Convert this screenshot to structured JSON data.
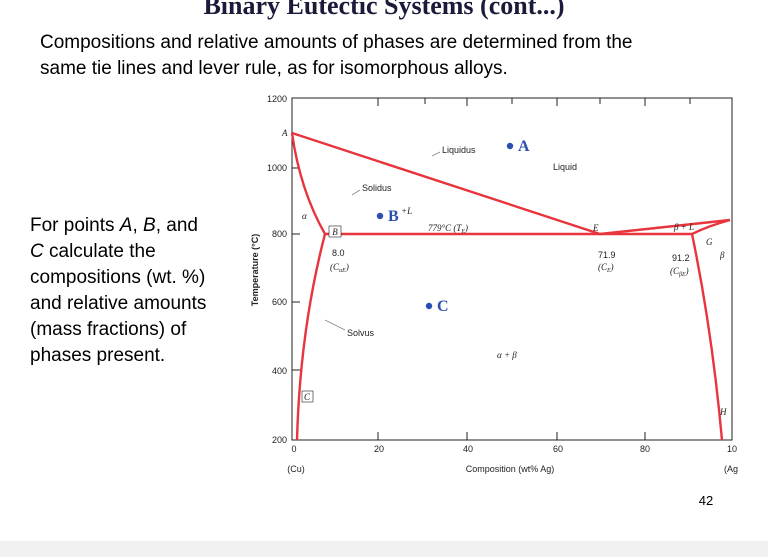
{
  "header": {
    "title": "Binary Eutectic Systems (cont...)"
  },
  "intro": [
    "Compositions and relative amounts of phases are determined from the",
    "same tie lines and lever rule, as for isomorphous alloys."
  ],
  "question": {
    "line1": [
      "For points ",
      "A",
      ", ",
      "B",
      ", and"
    ],
    "line2": [
      "C",
      " calculate the"
    ],
    "rest": [
      "compositions (wt. %)",
      "and relative amounts",
      "(mass fractions) of",
      "phases present."
    ]
  },
  "figure": {
    "y_axis_title": "Temperature (°C)",
    "x_axis_title": "Composition (wt% Ag)",
    "y_tick_labels": [
      "1200",
      "1000",
      "800",
      "600",
      "400",
      "200"
    ],
    "x_tick_labels": [
      "0",
      "20",
      "40",
      "60",
      "80",
      "10"
    ],
    "x_end_labels": [
      "(Cu)",
      "(Ag"
    ],
    "labels": {
      "a_melt": "A",
      "liquidus": "Liquidus",
      "liquid": "Liquid",
      "solidus": "Solidus",
      "alpha": "α",
      "b_box": "B",
      "eutectic_temp": [
        "779°C (T",
        "E",
        ")"
      ],
      "e": "E",
      "beta_l": "β + L",
      "g": "G",
      "beta": "β",
      "c_alpha_value": "8.0",
      "c_alpha": [
        "(C",
        "αE",
        ")"
      ],
      "c_e_value": "71.9",
      "c_e": [
        "(C",
        "E",
        ")"
      ],
      "c_beta_value": "91.2",
      "c_beta": [
        "(C",
        "βE",
        ")"
      ],
      "solvus": "Solvus",
      "alpha_beta": "α + β",
      "c_box": "C",
      "h": "H"
    },
    "points": {
      "a": "A",
      "b": "B",
      "b_suffix": "+L",
      "c": "C"
    }
  },
  "page_number": "42"
}
